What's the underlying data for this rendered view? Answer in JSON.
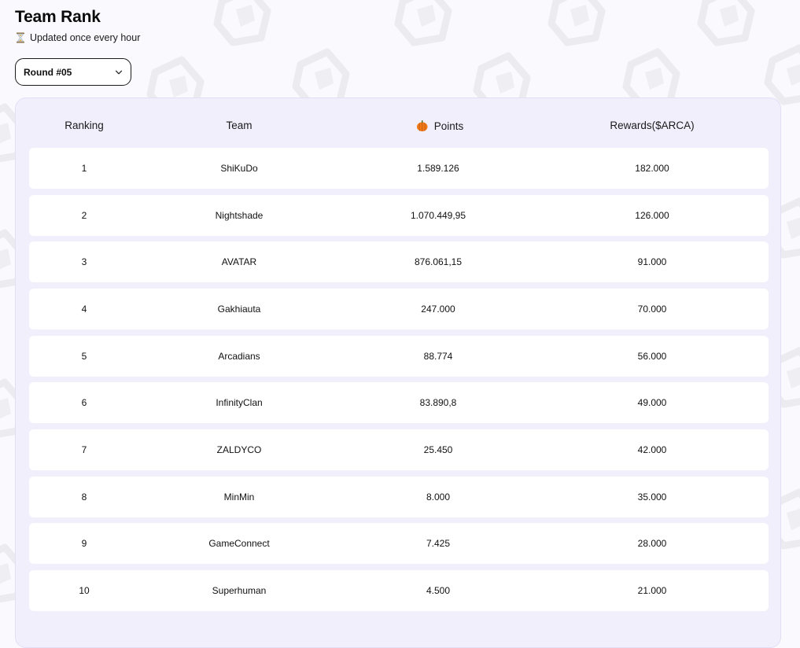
{
  "header": {
    "title": "Team Rank",
    "subtitle": "Updated once every hour"
  },
  "round_select": {
    "value": "Round #05"
  },
  "table": {
    "columns": {
      "ranking": "Ranking",
      "team": "Team",
      "points": "Points",
      "rewards": "Rewards($ARCA)"
    },
    "rows": [
      {
        "rank": "1",
        "team": "ShiKuDo",
        "points": "1.589.126",
        "rewards": "182.000"
      },
      {
        "rank": "2",
        "team": "Nightshade",
        "points": "1.070.449,95",
        "rewards": "126.000"
      },
      {
        "rank": "3",
        "team": "AVATAR",
        "points": "876.061,15",
        "rewards": "91.000"
      },
      {
        "rank": "4",
        "team": "Gakhiauta",
        "points": "247.000",
        "rewards": "70.000"
      },
      {
        "rank": "5",
        "team": "Arcadians",
        "points": "88.774",
        "rewards": "56.000"
      },
      {
        "rank": "6",
        "team": "InfinityClan",
        "points": "83.890,8",
        "rewards": "49.000"
      },
      {
        "rank": "7",
        "team": "ZALDYCO",
        "points": "25.450",
        "rewards": "42.000"
      },
      {
        "rank": "8",
        "team": "MinMin",
        "points": "8.000",
        "rewards": "35.000"
      },
      {
        "rank": "9",
        "team": "GameConnect",
        "points": "7.425",
        "rewards": "28.000"
      },
      {
        "rank": "10",
        "team": "Superhuman",
        "points": "4.500",
        "rewards": "21.000"
      }
    ]
  },
  "colors": {
    "page_bg": "#faf9fd",
    "card_bg": "#f2effd",
    "row_bg": "#ffffff",
    "pumpkin": "#f07a1a"
  },
  "icons": {
    "subtitle": "hourglass-icon",
    "points": "pumpkin-icon",
    "select": "chevron-down-icon"
  }
}
